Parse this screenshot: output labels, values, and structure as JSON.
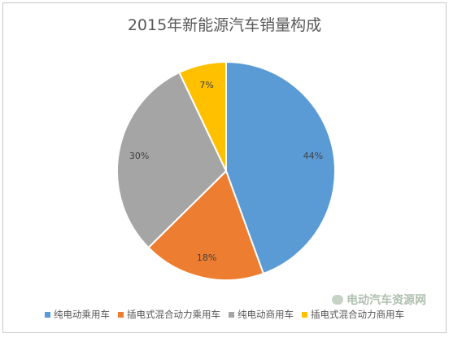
{
  "watermark": "电动汽车资源网",
  "chart_data": {
    "type": "pie",
    "title": "2015年新能源汽车销量构成",
    "slices": [
      {
        "name": "纯电动乘用车",
        "value": 44,
        "label": "44%",
        "color": "#5b9bd5"
      },
      {
        "name": "插电式混合动力乘用车",
        "value": 18,
        "label": "18%",
        "color": "#ed7d31"
      },
      {
        "name": "纯电动商用车",
        "value": 30,
        "label": "30%",
        "color": "#a5a5a5"
      },
      {
        "name": "插电式混合动力商用车",
        "value": 7,
        "label": "7%",
        "color": "#ffc000"
      }
    ],
    "legend_position": "bottom",
    "start_angle": "12 o'clock, clockwise"
  }
}
